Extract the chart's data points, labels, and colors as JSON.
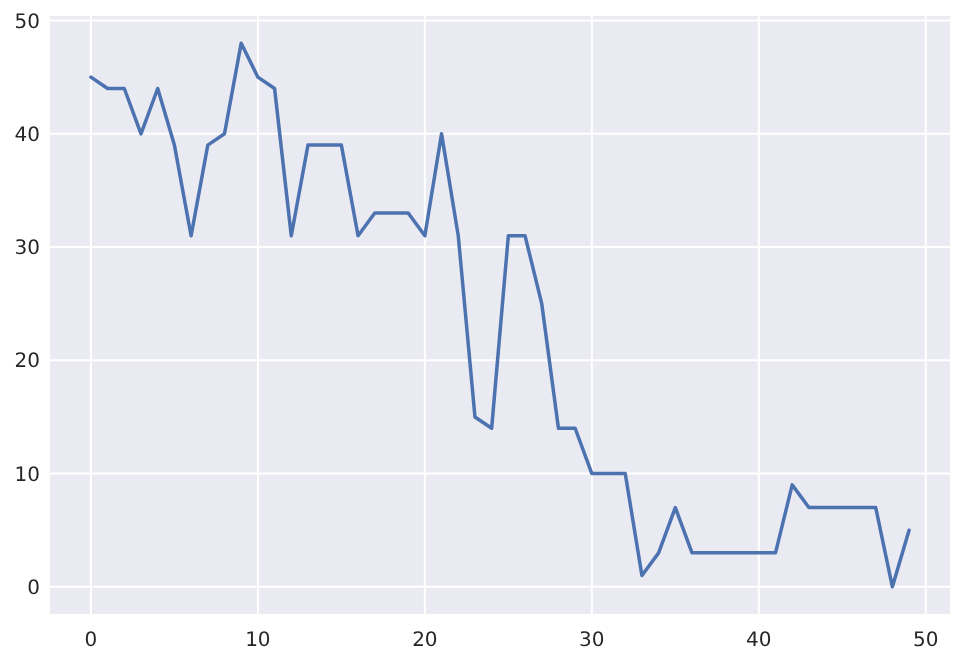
{
  "chart_data": {
    "type": "line",
    "x": [
      0,
      1,
      2,
      3,
      4,
      5,
      6,
      7,
      8,
      9,
      10,
      11,
      12,
      13,
      14,
      15,
      16,
      17,
      18,
      19,
      20,
      21,
      22,
      23,
      24,
      25,
      26,
      27,
      28,
      29,
      30,
      31,
      32,
      33,
      34,
      35,
      36,
      37,
      38,
      39,
      40,
      41,
      42,
      43,
      44,
      45,
      46,
      47,
      48,
      49
    ],
    "series": [
      {
        "color": "#4c72b0",
        "values": [
          45,
          44,
          44,
          40,
          44,
          39,
          31,
          39,
          40,
          48,
          45,
          44,
          31,
          39,
          39,
          39,
          31,
          33,
          33,
          33,
          31,
          40,
          31,
          15,
          14,
          31,
          31,
          25,
          14,
          14,
          10,
          10,
          10,
          1,
          3,
          7,
          3,
          3,
          3,
          3,
          3,
          3,
          9,
          7,
          7,
          7,
          7,
          7,
          0,
          5
        ]
      }
    ],
    "xlim": [
      -2.45,
      51.45
    ],
    "ylim": [
      -2.4,
      50.4
    ],
    "xticks": [
      0,
      10,
      20,
      30,
      40,
      50
    ],
    "yticks": [
      0,
      10,
      20,
      30,
      40,
      50
    ],
    "grid": true,
    "line_style": "solid",
    "marker": "none"
  }
}
